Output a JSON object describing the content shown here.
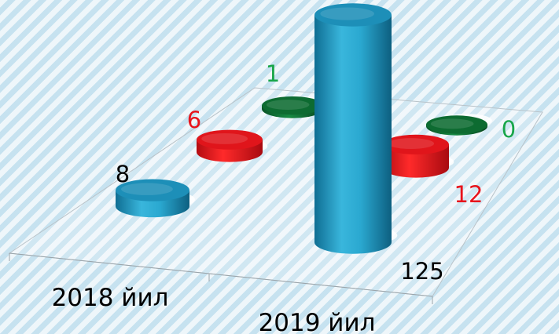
{
  "chart_data": {
    "type": "bar",
    "style": "3d-cylinder",
    "categories": [
      "2018 йил",
      "2019 йил"
    ],
    "series": [
      {
        "values": [
          8,
          125
        ],
        "color": "#2aa8d0"
      },
      {
        "values": [
          6,
          12
        ],
        "color": "#e8141c"
      },
      {
        "values": [
          1,
          0
        ],
        "color": "#0f7a38"
      }
    ],
    "label_colors": [
      "#000000",
      "#e8141c",
      "#19a64a"
    ],
    "ylim": [
      0,
      125
    ],
    "grid": false,
    "legend": "none"
  }
}
